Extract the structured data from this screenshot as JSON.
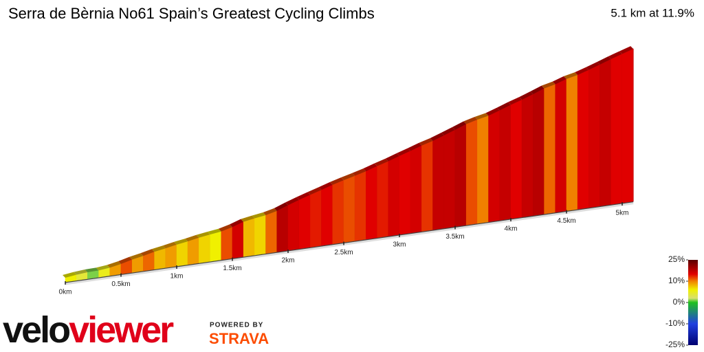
{
  "chart_data": {
    "type": "profile",
    "title": "Serra de Bèrnia No61 Spain’s Greatest Cycling Climbs",
    "subtitle": "5.1 km at 11.9%",
    "x": [
      0,
      0.1,
      0.2,
      0.3,
      0.4,
      0.5,
      0.6,
      0.7,
      0.8,
      0.9,
      1.0,
      1.1,
      1.2,
      1.3,
      1.4,
      1.5,
      1.6,
      1.7,
      1.8,
      1.9,
      2.0,
      2.1,
      2.2,
      2.3,
      2.4,
      2.5,
      2.6,
      2.7,
      2.8,
      2.9,
      3.0,
      3.1,
      3.2,
      3.3,
      3.4,
      3.5,
      3.6,
      3.7,
      3.8,
      3.9,
      4.0,
      4.1,
      4.2,
      4.3,
      4.4,
      4.5,
      4.6,
      4.7,
      4.8,
      4.9,
      5.0
    ],
    "values": [
      6,
      4,
      1,
      5,
      9,
      12,
      9,
      11,
      8,
      9,
      7,
      9,
      7,
      6,
      12,
      16,
      8,
      7,
      11,
      18,
      16,
      15,
      14,
      15,
      13,
      12,
      13,
      15,
      14,
      16,
      15,
      16,
      13,
      17,
      17,
      18,
      12,
      10,
      16,
      17,
      15,
      17,
      18,
      11,
      16,
      10,
      15,
      16,
      17,
      15,
      15
    ],
    "xticks": [
      {
        "value": 0,
        "label": "0km"
      },
      {
        "value": 0.5,
        "label": "0.5km"
      },
      {
        "value": 1,
        "label": "1km"
      },
      {
        "value": 1.5,
        "label": "1.5km"
      },
      {
        "value": 2,
        "label": "2km"
      },
      {
        "value": 2.5,
        "label": "2.5km"
      },
      {
        "value": 3,
        "label": "3km"
      },
      {
        "value": 3.5,
        "label": "3.5km"
      },
      {
        "value": 4,
        "label": "4km"
      },
      {
        "value": 4.5,
        "label": "4.5km"
      },
      {
        "value": 5,
        "label": "5km"
      }
    ],
    "colorbar_ticks": [
      {
        "value": 25,
        "label": "25%"
      },
      {
        "value": 10,
        "label": "10%"
      },
      {
        "value": 0,
        "label": "0%"
      },
      {
        "value": -10,
        "label": "-10%"
      },
      {
        "value": -25,
        "label": "-25%"
      }
    ],
    "colorscale": [
      {
        "value": 25,
        "color": "#5a0000"
      },
      {
        "value": 15,
        "color": "#e00000"
      },
      {
        "value": 10,
        "color": "#f08000"
      },
      {
        "value": 6,
        "color": "#f0f000"
      },
      {
        "value": 2,
        "color": "#d8e070"
      },
      {
        "value": 0,
        "color": "#20c020"
      },
      {
        "value": -10,
        "color": "#2040e0"
      },
      {
        "value": -25,
        "color": "#000070"
      }
    ]
  },
  "branding": {
    "logo_left": "velo",
    "logo_right": "viewer",
    "powered_by": "POWERED BY",
    "strava": "STRAVA"
  }
}
